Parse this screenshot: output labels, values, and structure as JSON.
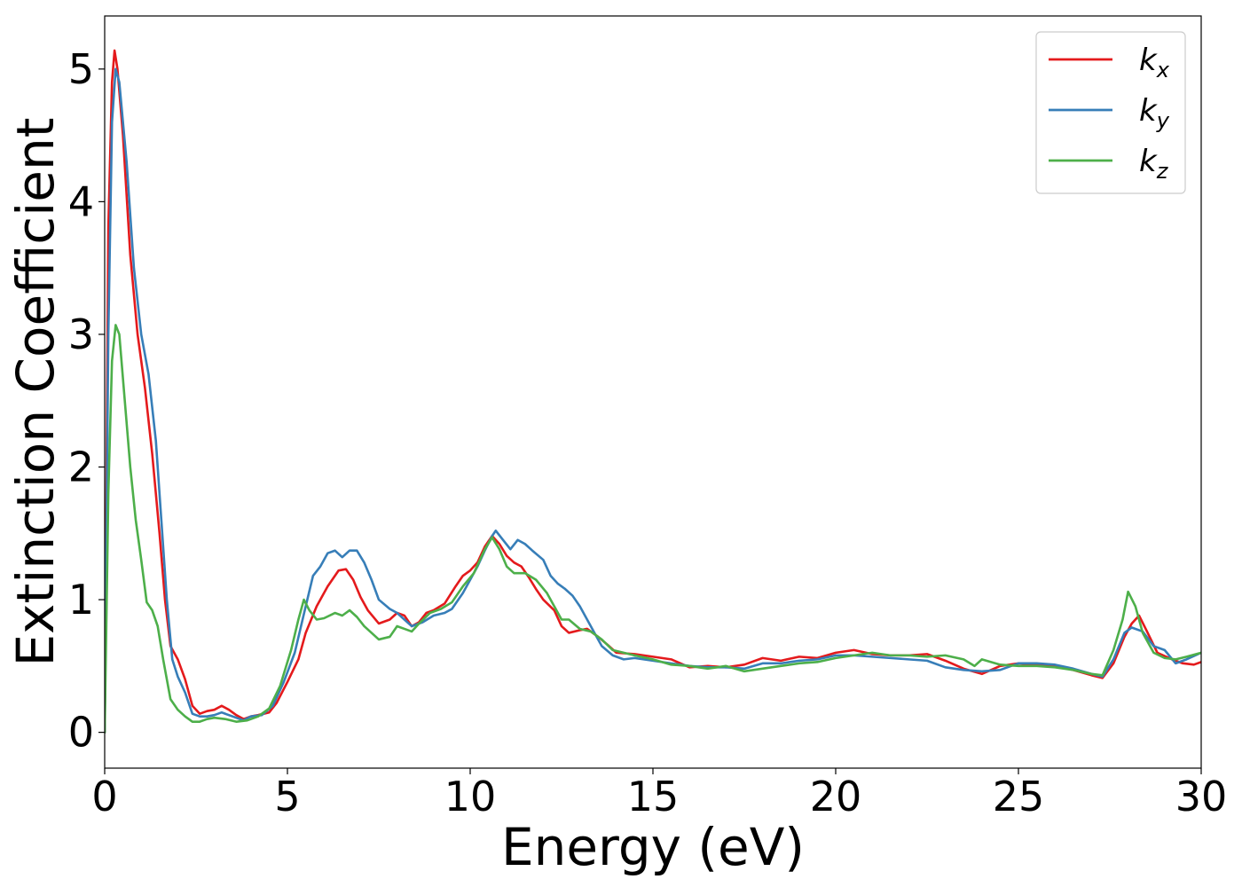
{
  "chart_data": {
    "type": "line",
    "title": "",
    "xlabel": "Energy (eV)",
    "ylabel": "Extinction Coefficient",
    "xlim": [
      0,
      30
    ],
    "ylim": [
      -0.27,
      5.4
    ],
    "x_ticks": [
      "0",
      "5",
      "10",
      "15",
      "20",
      "25",
      "30"
    ],
    "x_tick_values": [
      0,
      5,
      10,
      15,
      20,
      25,
      30
    ],
    "y_ticks": [
      "0",
      "1",
      "2",
      "3",
      "4",
      "5"
    ],
    "y_tick_values": [
      0,
      1,
      2,
      3,
      4,
      5
    ],
    "grid": false,
    "legend_position": "top-right",
    "series": [
      {
        "name": "kx",
        "name_main": "k",
        "name_sub": "x",
        "color": "#e41a1c",
        "points": [
          [
            0,
            0
          ],
          [
            0.1,
            3.8
          ],
          [
            0.2,
            4.9
          ],
          [
            0.27,
            5.14
          ],
          [
            0.35,
            5.0
          ],
          [
            0.5,
            4.5
          ],
          [
            0.7,
            3.6
          ],
          [
            0.9,
            3.0
          ],
          [
            1.1,
            2.6
          ],
          [
            1.3,
            2.1
          ],
          [
            1.5,
            1.5
          ],
          [
            1.65,
            1.0
          ],
          [
            1.8,
            0.65
          ],
          [
            2.0,
            0.55
          ],
          [
            2.2,
            0.4
          ],
          [
            2.4,
            0.2
          ],
          [
            2.6,
            0.14
          ],
          [
            2.8,
            0.16
          ],
          [
            3.0,
            0.17
          ],
          [
            3.2,
            0.2
          ],
          [
            3.4,
            0.17
          ],
          [
            3.6,
            0.13
          ],
          [
            3.8,
            0.1
          ],
          [
            4.0,
            0.12
          ],
          [
            4.2,
            0.13
          ],
          [
            4.5,
            0.15
          ],
          [
            4.7,
            0.22
          ],
          [
            5.0,
            0.38
          ],
          [
            5.3,
            0.55
          ],
          [
            5.5,
            0.75
          ],
          [
            5.8,
            0.95
          ],
          [
            6.1,
            1.1
          ],
          [
            6.4,
            1.22
          ],
          [
            6.6,
            1.23
          ],
          [
            6.8,
            1.15
          ],
          [
            7.0,
            1.02
          ],
          [
            7.2,
            0.92
          ],
          [
            7.5,
            0.82
          ],
          [
            7.8,
            0.85
          ],
          [
            8.0,
            0.9
          ],
          [
            8.2,
            0.88
          ],
          [
            8.4,
            0.8
          ],
          [
            8.6,
            0.83
          ],
          [
            8.8,
            0.9
          ],
          [
            9.0,
            0.92
          ],
          [
            9.3,
            0.97
          ],
          [
            9.6,
            1.1
          ],
          [
            9.8,
            1.18
          ],
          [
            10.0,
            1.22
          ],
          [
            10.2,
            1.28
          ],
          [
            10.4,
            1.4
          ],
          [
            10.6,
            1.48
          ],
          [
            10.8,
            1.42
          ],
          [
            11.0,
            1.33
          ],
          [
            11.2,
            1.28
          ],
          [
            11.4,
            1.25
          ],
          [
            11.6,
            1.17
          ],
          [
            11.8,
            1.08
          ],
          [
            12.0,
            1.0
          ],
          [
            12.3,
            0.92
          ],
          [
            12.5,
            0.8
          ],
          [
            12.7,
            0.75
          ],
          [
            13.0,
            0.77
          ],
          [
            13.2,
            0.78
          ],
          [
            13.5,
            0.72
          ],
          [
            13.8,
            0.65
          ],
          [
            14.0,
            0.6
          ],
          [
            14.5,
            0.59
          ],
          [
            15.0,
            0.57
          ],
          [
            15.5,
            0.55
          ],
          [
            16.0,
            0.49
          ],
          [
            16.5,
            0.5
          ],
          [
            17.0,
            0.49
          ],
          [
            17.5,
            0.51
          ],
          [
            18.0,
            0.56
          ],
          [
            18.5,
            0.54
          ],
          [
            19.0,
            0.57
          ],
          [
            19.5,
            0.56
          ],
          [
            20.0,
            0.6
          ],
          [
            20.5,
            0.62
          ],
          [
            21.0,
            0.59
          ],
          [
            21.5,
            0.58
          ],
          [
            22.0,
            0.58
          ],
          [
            22.5,
            0.59
          ],
          [
            23.0,
            0.54
          ],
          [
            23.5,
            0.48
          ],
          [
            24.0,
            0.44
          ],
          [
            24.5,
            0.5
          ],
          [
            25.0,
            0.52
          ],
          [
            25.5,
            0.51
          ],
          [
            26.0,
            0.5
          ],
          [
            26.5,
            0.47
          ],
          [
            27.0,
            0.43
          ],
          [
            27.3,
            0.41
          ],
          [
            27.6,
            0.52
          ],
          [
            27.9,
            0.72
          ],
          [
            28.1,
            0.82
          ],
          [
            28.3,
            0.88
          ],
          [
            28.5,
            0.77
          ],
          [
            28.8,
            0.6
          ],
          [
            29.2,
            0.55
          ],
          [
            29.5,
            0.52
          ],
          [
            29.8,
            0.51
          ],
          [
            30.0,
            0.53
          ]
        ]
      },
      {
        "name": "ky",
        "name_main": "k",
        "name_sub": "y",
        "color": "#377eb8",
        "points": [
          [
            0,
            0
          ],
          [
            0.1,
            3.0
          ],
          [
            0.2,
            4.6
          ],
          [
            0.3,
            5.0
          ],
          [
            0.4,
            4.9
          ],
          [
            0.6,
            4.3
          ],
          [
            0.8,
            3.5
          ],
          [
            1.0,
            3.0
          ],
          [
            1.2,
            2.7
          ],
          [
            1.4,
            2.2
          ],
          [
            1.55,
            1.6
          ],
          [
            1.7,
            1.0
          ],
          [
            1.85,
            0.55
          ],
          [
            2.0,
            0.42
          ],
          [
            2.2,
            0.3
          ],
          [
            2.4,
            0.14
          ],
          [
            2.6,
            0.12
          ],
          [
            2.8,
            0.12
          ],
          [
            3.0,
            0.13
          ],
          [
            3.2,
            0.15
          ],
          [
            3.5,
            0.12
          ],
          [
            3.8,
            0.09
          ],
          [
            4.0,
            0.12
          ],
          [
            4.3,
            0.13
          ],
          [
            4.6,
            0.2
          ],
          [
            4.9,
            0.38
          ],
          [
            5.2,
            0.6
          ],
          [
            5.5,
            0.95
          ],
          [
            5.7,
            1.18
          ],
          [
            5.9,
            1.25
          ],
          [
            6.1,
            1.35
          ],
          [
            6.3,
            1.37
          ],
          [
            6.5,
            1.32
          ],
          [
            6.7,
            1.37
          ],
          [
            6.9,
            1.37
          ],
          [
            7.1,
            1.28
          ],
          [
            7.3,
            1.15
          ],
          [
            7.5,
            1.0
          ],
          [
            7.8,
            0.93
          ],
          [
            8.0,
            0.9
          ],
          [
            8.2,
            0.85
          ],
          [
            8.4,
            0.8
          ],
          [
            8.7,
            0.83
          ],
          [
            9.0,
            0.88
          ],
          [
            9.3,
            0.9
          ],
          [
            9.5,
            0.93
          ],
          [
            9.8,
            1.05
          ],
          [
            10.0,
            1.15
          ],
          [
            10.2,
            1.25
          ],
          [
            10.4,
            1.37
          ],
          [
            10.6,
            1.48
          ],
          [
            10.7,
            1.52
          ],
          [
            10.9,
            1.45
          ],
          [
            11.1,
            1.38
          ],
          [
            11.3,
            1.45
          ],
          [
            11.5,
            1.42
          ],
          [
            11.7,
            1.37
          ],
          [
            12.0,
            1.3
          ],
          [
            12.2,
            1.18
          ],
          [
            12.4,
            1.12
          ],
          [
            12.6,
            1.08
          ],
          [
            12.8,
            1.03
          ],
          [
            13.0,
            0.95
          ],
          [
            13.2,
            0.85
          ],
          [
            13.4,
            0.75
          ],
          [
            13.6,
            0.65
          ],
          [
            13.9,
            0.58
          ],
          [
            14.2,
            0.55
          ],
          [
            14.5,
            0.56
          ],
          [
            15.0,
            0.54
          ],
          [
            15.5,
            0.52
          ],
          [
            16.0,
            0.5
          ],
          [
            16.5,
            0.49
          ],
          [
            17.0,
            0.49
          ],
          [
            17.5,
            0.48
          ],
          [
            18.0,
            0.52
          ],
          [
            18.5,
            0.52
          ],
          [
            19.0,
            0.54
          ],
          [
            19.5,
            0.55
          ],
          [
            20.0,
            0.58
          ],
          [
            20.5,
            0.58
          ],
          [
            21.0,
            0.57
          ],
          [
            21.5,
            0.56
          ],
          [
            22.0,
            0.55
          ],
          [
            22.5,
            0.54
          ],
          [
            23.0,
            0.49
          ],
          [
            23.5,
            0.47
          ],
          [
            24.0,
            0.46
          ],
          [
            24.5,
            0.47
          ],
          [
            25.0,
            0.52
          ],
          [
            25.5,
            0.52
          ],
          [
            26.0,
            0.51
          ],
          [
            26.5,
            0.48
          ],
          [
            27.0,
            0.44
          ],
          [
            27.3,
            0.42
          ],
          [
            27.6,
            0.55
          ],
          [
            27.9,
            0.75
          ],
          [
            28.1,
            0.79
          ],
          [
            28.4,
            0.76
          ],
          [
            28.7,
            0.65
          ],
          [
            29.0,
            0.62
          ],
          [
            29.3,
            0.52
          ],
          [
            29.6,
            0.55
          ],
          [
            30.0,
            0.6
          ]
        ]
      },
      {
        "name": "kz",
        "name_main": "k",
        "name_sub": "z",
        "color": "#4daf4a",
        "points": [
          [
            0,
            0
          ],
          [
            0.1,
            1.8
          ],
          [
            0.2,
            2.8
          ],
          [
            0.3,
            3.07
          ],
          [
            0.4,
            3.0
          ],
          [
            0.55,
            2.5
          ],
          [
            0.7,
            2.0
          ],
          [
            0.85,
            1.6
          ],
          [
            1.0,
            1.3
          ],
          [
            1.15,
            0.98
          ],
          [
            1.3,
            0.92
          ],
          [
            1.45,
            0.8
          ],
          [
            1.6,
            0.55
          ],
          [
            1.8,
            0.25
          ],
          [
            2.0,
            0.17
          ],
          [
            2.2,
            0.12
          ],
          [
            2.4,
            0.08
          ],
          [
            2.6,
            0.08
          ],
          [
            2.8,
            0.1
          ],
          [
            3.0,
            0.11
          ],
          [
            3.3,
            0.1
          ],
          [
            3.6,
            0.08
          ],
          [
            3.9,
            0.09
          ],
          [
            4.2,
            0.12
          ],
          [
            4.5,
            0.18
          ],
          [
            4.8,
            0.35
          ],
          [
            5.1,
            0.62
          ],
          [
            5.3,
            0.85
          ],
          [
            5.45,
            1.0
          ],
          [
            5.6,
            0.92
          ],
          [
            5.8,
            0.85
          ],
          [
            6.0,
            0.86
          ],
          [
            6.3,
            0.9
          ],
          [
            6.5,
            0.88
          ],
          [
            6.7,
            0.92
          ],
          [
            6.9,
            0.87
          ],
          [
            7.1,
            0.8
          ],
          [
            7.3,
            0.75
          ],
          [
            7.5,
            0.7
          ],
          [
            7.8,
            0.72
          ],
          [
            8.0,
            0.8
          ],
          [
            8.2,
            0.78
          ],
          [
            8.4,
            0.76
          ],
          [
            8.6,
            0.82
          ],
          [
            8.9,
            0.9
          ],
          [
            9.2,
            0.93
          ],
          [
            9.5,
            0.98
          ],
          [
            9.8,
            1.1
          ],
          [
            10.1,
            1.2
          ],
          [
            10.4,
            1.38
          ],
          [
            10.6,
            1.47
          ],
          [
            10.8,
            1.38
          ],
          [
            11.0,
            1.25
          ],
          [
            11.2,
            1.2
          ],
          [
            11.5,
            1.2
          ],
          [
            11.8,
            1.15
          ],
          [
            12.1,
            1.05
          ],
          [
            12.3,
            0.95
          ],
          [
            12.5,
            0.85
          ],
          [
            12.7,
            0.85
          ],
          [
            13.0,
            0.78
          ],
          [
            13.3,
            0.76
          ],
          [
            13.6,
            0.7
          ],
          [
            13.9,
            0.62
          ],
          [
            14.2,
            0.6
          ],
          [
            14.5,
            0.58
          ],
          [
            15.0,
            0.55
          ],
          [
            15.5,
            0.51
          ],
          [
            16.0,
            0.5
          ],
          [
            16.5,
            0.48
          ],
          [
            17.0,
            0.5
          ],
          [
            17.5,
            0.46
          ],
          [
            18.0,
            0.48
          ],
          [
            18.5,
            0.5
          ],
          [
            19.0,
            0.52
          ],
          [
            19.5,
            0.53
          ],
          [
            20.0,
            0.56
          ],
          [
            20.5,
            0.58
          ],
          [
            21.0,
            0.6
          ],
          [
            21.5,
            0.58
          ],
          [
            22.0,
            0.58
          ],
          [
            22.5,
            0.57
          ],
          [
            23.0,
            0.58
          ],
          [
            23.5,
            0.55
          ],
          [
            23.8,
            0.5
          ],
          [
            24.0,
            0.55
          ],
          [
            24.5,
            0.51
          ],
          [
            25.0,
            0.5
          ],
          [
            25.5,
            0.5
          ],
          [
            26.0,
            0.49
          ],
          [
            26.5,
            0.47
          ],
          [
            27.0,
            0.44
          ],
          [
            27.3,
            0.43
          ],
          [
            27.6,
            0.62
          ],
          [
            27.85,
            0.85
          ],
          [
            28.0,
            1.06
          ],
          [
            28.2,
            0.95
          ],
          [
            28.4,
            0.75
          ],
          [
            28.7,
            0.6
          ],
          [
            29.0,
            0.56
          ],
          [
            29.3,
            0.55
          ],
          [
            29.6,
            0.57
          ],
          [
            30.0,
            0.6
          ]
        ]
      }
    ]
  }
}
